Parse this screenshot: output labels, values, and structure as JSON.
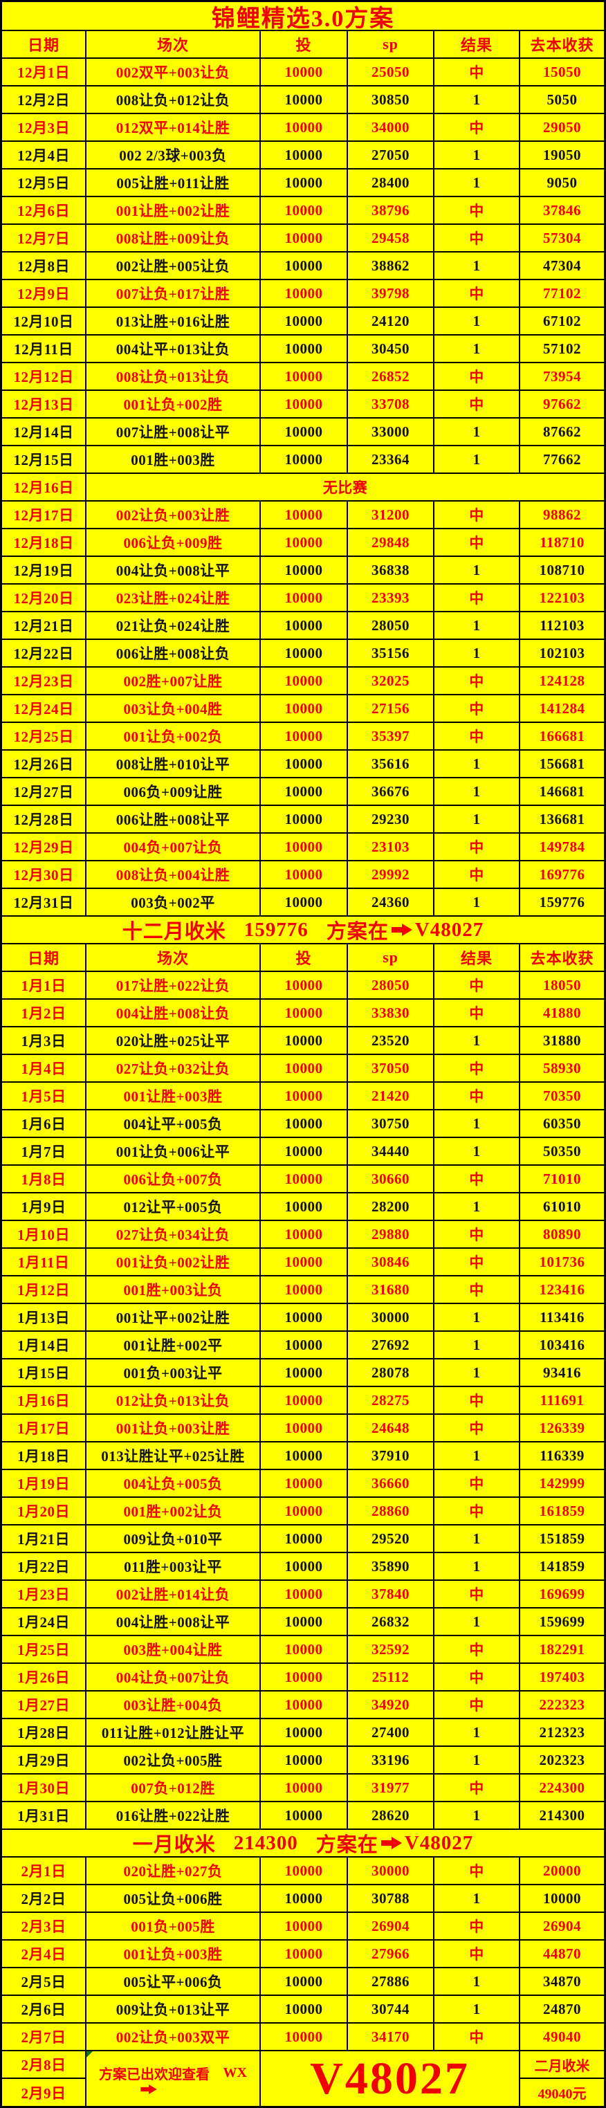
{
  "title": "锦鲤精选3.0方案",
  "columns": [
    "日期",
    "场次",
    "投",
    "sp",
    "结果",
    "去本收获"
  ],
  "colors": {
    "background": "#ffff00",
    "red": "#f00000",
    "black": "#121212",
    "grid": "#000000",
    "comment_marker_green": "#0c7a0c"
  },
  "december": {
    "rows": [
      {
        "d": "12月1日",
        "m": "002双平+003让负",
        "t": "10000",
        "sp": "25050",
        "r": "中",
        "p": "15050",
        "w": true
      },
      {
        "d": "12月2日",
        "m": "008让负+012让负",
        "t": "10000",
        "sp": "30850",
        "r": "1",
        "p": "5050",
        "w": false
      },
      {
        "d": "12月3日",
        "m": "012双平+014让胜",
        "t": "10000",
        "sp": "34000",
        "r": "中",
        "p": "29050",
        "w": true
      },
      {
        "d": "12月4日",
        "m": "002 2/3球+003负",
        "t": "10000",
        "sp": "27050",
        "r": "1",
        "p": "19050",
        "w": false
      },
      {
        "d": "12月5日",
        "m": "005让胜+011让胜",
        "t": "10000",
        "sp": "28400",
        "r": "1",
        "p": "9050",
        "w": false
      },
      {
        "d": "12月6日",
        "m": "001让胜+002让胜",
        "t": "10000",
        "sp": "38796",
        "r": "中",
        "p": "37846",
        "w": true
      },
      {
        "d": "12月7日",
        "m": "008让胜+009让负",
        "t": "10000",
        "sp": "29458",
        "r": "中",
        "p": "57304",
        "w": true
      },
      {
        "d": "12月8日",
        "m": "002让胜+005让负",
        "t": "10000",
        "sp": "38862",
        "r": "1",
        "p": "47304",
        "w": false
      },
      {
        "d": "12月9日",
        "m": "007让负+017让胜",
        "t": "10000",
        "sp": "39798",
        "r": "中",
        "p": "77102",
        "w": true
      },
      {
        "d": "12月10日",
        "m": "013让胜+016让胜",
        "t": "10000",
        "sp": "24120",
        "r": "1",
        "p": "67102",
        "w": false
      },
      {
        "d": "12月11日",
        "m": "004让平+013让负",
        "t": "10000",
        "sp": "30450",
        "r": "1",
        "p": "57102",
        "w": false
      },
      {
        "d": "12月12日",
        "m": "008让负+013让负",
        "t": "10000",
        "sp": "26852",
        "r": "中",
        "p": "73954",
        "w": true
      },
      {
        "d": "12月13日",
        "m": "001让负+002胜",
        "t": "10000",
        "sp": "33708",
        "r": "中",
        "p": "97662",
        "w": true
      },
      {
        "d": "12月14日",
        "m": "007让胜+008让平",
        "t": "10000",
        "sp": "33000",
        "r": "1",
        "p": "87662",
        "w": false
      },
      {
        "d": "12月15日",
        "m": "001胜+003胜",
        "t": "10000",
        "sp": "23364",
        "r": "1",
        "p": "77662",
        "w": false
      },
      {
        "d": "12月16日",
        "no_match": "无比赛",
        "w": true
      },
      {
        "d": "12月17日",
        "m": "002让负+003让胜",
        "t": "10000",
        "sp": "31200",
        "r": "中",
        "p": "98862",
        "w": true
      },
      {
        "d": "12月18日",
        "m": "006让负+009胜",
        "t": "10000",
        "sp": "29848",
        "r": "中",
        "p": "118710",
        "w": true
      },
      {
        "d": "12月19日",
        "m": "004让负+008让平",
        "t": "10000",
        "sp": "36838",
        "r": "1",
        "p": "108710",
        "w": false
      },
      {
        "d": "12月20日",
        "m": "023让胜+024让胜",
        "t": "10000",
        "sp": "23393",
        "r": "中",
        "p": "122103",
        "w": true
      },
      {
        "d": "12月21日",
        "m": "021让负+024让胜",
        "t": "10000",
        "sp": "28050",
        "r": "1",
        "p": "112103",
        "w": false
      },
      {
        "d": "12月22日",
        "m": "006让胜+008让负",
        "t": "10000",
        "sp": "35156",
        "r": "1",
        "p": "102103",
        "w": false
      },
      {
        "d": "12月23日",
        "m": "002胜+007让胜",
        "t": "10000",
        "sp": "32025",
        "r": "中",
        "p": "124128",
        "w": true
      },
      {
        "d": "12月24日",
        "m": "003让负+004胜",
        "t": "10000",
        "sp": "27156",
        "r": "中",
        "p": "141284",
        "w": true
      },
      {
        "d": "12月25日",
        "m": "001让负+002负",
        "t": "10000",
        "sp": "35397",
        "r": "中",
        "p": "166681",
        "w": true
      },
      {
        "d": "12月26日",
        "m": "008让胜+010让平",
        "t": "10000",
        "sp": "35616",
        "r": "1",
        "p": "156681",
        "w": false
      },
      {
        "d": "12月27日",
        "m": "006负+009让胜",
        "t": "10000",
        "sp": "36676",
        "r": "1",
        "p": "146681",
        "w": false
      },
      {
        "d": "12月28日",
        "m": "006让胜+008让平",
        "t": "10000",
        "sp": "29230",
        "r": "1",
        "p": "136681",
        "w": false
      },
      {
        "d": "12月29日",
        "m": "004负+007让负",
        "t": "10000",
        "sp": "23103",
        "r": "中",
        "p": "149784",
        "w": true
      },
      {
        "d": "12月30日",
        "m": "008让负+004让胜",
        "t": "10000",
        "sp": "29992",
        "r": "中",
        "p": "169776",
        "w": true
      },
      {
        "d": "12月31日",
        "m": "003负+002平",
        "t": "10000",
        "sp": "24360",
        "r": "1",
        "p": "159776",
        "w": false
      }
    ],
    "summary": {
      "label": "十二月收米",
      "amount": "159776",
      "plan_label": "方案在",
      "code": "V48027"
    }
  },
  "january": {
    "rows": [
      {
        "d": "1月1日",
        "m": "017让胜+022让负",
        "t": "10000",
        "sp": "28050",
        "r": "中",
        "p": "18050",
        "w": true
      },
      {
        "d": "1月2日",
        "m": "004让胜+008让负",
        "t": "10000",
        "sp": "33830",
        "r": "中",
        "p": "41880",
        "w": true
      },
      {
        "d": "1月3日",
        "m": "020让胜+025让平",
        "t": "10000",
        "sp": "23520",
        "r": "1",
        "p": "31880",
        "w": false
      },
      {
        "d": "1月4日",
        "m": "027让负+032让负",
        "t": "10000",
        "sp": "37050",
        "r": "中",
        "p": "58930",
        "w": true
      },
      {
        "d": "1月5日",
        "m": "001让胜+003胜",
        "t": "10000",
        "sp": "21420",
        "r": "中",
        "p": "70350",
        "w": true
      },
      {
        "d": "1月6日",
        "m": "004让平+005负",
        "t": "10000",
        "sp": "30750",
        "r": "1",
        "p": "60350",
        "w": false
      },
      {
        "d": "1月7日",
        "m": "001让负+006让平",
        "t": "10000",
        "sp": "34440",
        "r": "1",
        "p": "50350",
        "w": false
      },
      {
        "d": "1月8日",
        "m": "006让负+007负",
        "t": "10000",
        "sp": "30660",
        "r": "中",
        "p": "71010",
        "w": true
      },
      {
        "d": "1月9日",
        "m": "012让平+005负",
        "t": "10000",
        "sp": "28200",
        "r": "1",
        "p": "61010",
        "w": false
      },
      {
        "d": "1月10日",
        "m": "027让负+034让负",
        "t": "10000",
        "sp": "29880",
        "r": "中",
        "p": "80890",
        "w": true
      },
      {
        "d": "1月11日",
        "m": "001让负+002让胜",
        "t": "10000",
        "sp": "30846",
        "r": "中",
        "p": "101736",
        "w": true
      },
      {
        "d": "1月12日",
        "m": "001胜+003让负",
        "t": "10000",
        "sp": "31680",
        "r": "中",
        "p": "123416",
        "w": true
      },
      {
        "d": "1月13日",
        "m": "001让平+002让胜",
        "t": "10000",
        "sp": "30000",
        "r": "1",
        "p": "113416",
        "w": false
      },
      {
        "d": "1月14日",
        "m": "001让胜+002平",
        "t": "10000",
        "sp": "27692",
        "r": "1",
        "p": "103416",
        "w": false
      },
      {
        "d": "1月15日",
        "m": "001负+003让平",
        "t": "10000",
        "sp": "28078",
        "r": "1",
        "p": "93416",
        "w": false
      },
      {
        "d": "1月16日",
        "m": "012让负+013让负",
        "t": "10000",
        "sp": "28275",
        "r": "中",
        "p": "111691",
        "w": true
      },
      {
        "d": "1月17日",
        "m": "001让负+003让胜",
        "t": "10000",
        "sp": "24648",
        "r": "中",
        "p": "126339",
        "w": true
      },
      {
        "d": "1月18日",
        "m": "013让胜让平+025让胜",
        "t": "10000",
        "sp": "37910",
        "r": "1",
        "p": "116339",
        "w": false
      },
      {
        "d": "1月19日",
        "m": "004让负+005负",
        "t": "10000",
        "sp": "36660",
        "r": "中",
        "p": "142999",
        "w": true
      },
      {
        "d": "1月20日",
        "m": "001胜+002让负",
        "t": "10000",
        "sp": "28860",
        "r": "中",
        "p": "161859",
        "w": true
      },
      {
        "d": "1月21日",
        "m": "009让负+010平",
        "t": "10000",
        "sp": "29520",
        "r": "1",
        "p": "151859",
        "w": false
      },
      {
        "d": "1月22日",
        "m": "011胜+003让平",
        "t": "10000",
        "sp": "35890",
        "r": "1",
        "p": "141859",
        "w": false
      },
      {
        "d": "1月23日",
        "m": "002让胜+014让负",
        "t": "10000",
        "sp": "37840",
        "r": "中",
        "p": "169699",
        "w": true
      },
      {
        "d": "1月24日",
        "m": "004让胜+008让平",
        "t": "10000",
        "sp": "26832",
        "r": "1",
        "p": "159699",
        "w": false
      },
      {
        "d": "1月25日",
        "m": "003胜+004让胜",
        "t": "10000",
        "sp": "32592",
        "r": "中",
        "p": "182291",
        "w": true
      },
      {
        "d": "1月26日",
        "m": "004让负+007让负",
        "t": "10000",
        "sp": "25112",
        "r": "中",
        "p": "197403",
        "w": true
      },
      {
        "d": "1月27日",
        "m": "003让胜+004负",
        "t": "10000",
        "sp": "34920",
        "r": "中",
        "p": "222323",
        "w": true
      },
      {
        "d": "1月28日",
        "m": "011让胜+012让胜让平",
        "t": "10000",
        "sp": "27400",
        "r": "1",
        "p": "212323",
        "w": false
      },
      {
        "d": "1月29日",
        "m": "002让负+005胜",
        "t": "10000",
        "sp": "33196",
        "r": "1",
        "p": "202323",
        "w": false
      },
      {
        "d": "1月30日",
        "m": "007负+012胜",
        "t": "10000",
        "sp": "31977",
        "r": "中",
        "p": "224300",
        "w": true
      },
      {
        "d": "1月31日",
        "m": "016让胜+022让胜",
        "t": "10000",
        "sp": "28620",
        "r": "1",
        "p": "214300",
        "w": false
      }
    ],
    "summary": {
      "label": "一月收米",
      "amount": "214300",
      "plan_label": "方案在",
      "code": "V48027"
    }
  },
  "february": {
    "rows": [
      {
        "d": "2月1日",
        "m": "020让胜+027负",
        "t": "10000",
        "sp": "30000",
        "r": "中",
        "p": "20000",
        "w": true
      },
      {
        "d": "2月2日",
        "m": "005让负+006胜",
        "t": "10000",
        "sp": "30788",
        "r": "1",
        "p": "10000",
        "w": false
      },
      {
        "d": "2月3日",
        "m": "001负+005胜",
        "t": "10000",
        "sp": "26904",
        "r": "中",
        "p": "26904",
        "w": true
      },
      {
        "d": "2月4日",
        "m": "001让负+003胜",
        "t": "10000",
        "sp": "27966",
        "r": "中",
        "p": "44870",
        "w": true
      },
      {
        "d": "2月5日",
        "m": "005让平+006负",
        "t": "10000",
        "sp": "27886",
        "r": "1",
        "p": "34870",
        "w": false
      },
      {
        "d": "2月6日",
        "m": "009让负+013让平",
        "t": "10000",
        "sp": "30744",
        "r": "1",
        "p": "24870",
        "w": false
      },
      {
        "d": "2月7日",
        "m": "002让负+003双平",
        "t": "10000",
        "sp": "34170",
        "r": "中",
        "p": "49040",
        "w": true
      }
    ]
  },
  "footer": {
    "date_top": "2月8日",
    "date_bottom": "2月9日",
    "notice": "方案已出欢迎查看",
    "wx": "WX",
    "code": "V48027",
    "summary_label": "二月收米",
    "summary_amount": "49040元"
  }
}
